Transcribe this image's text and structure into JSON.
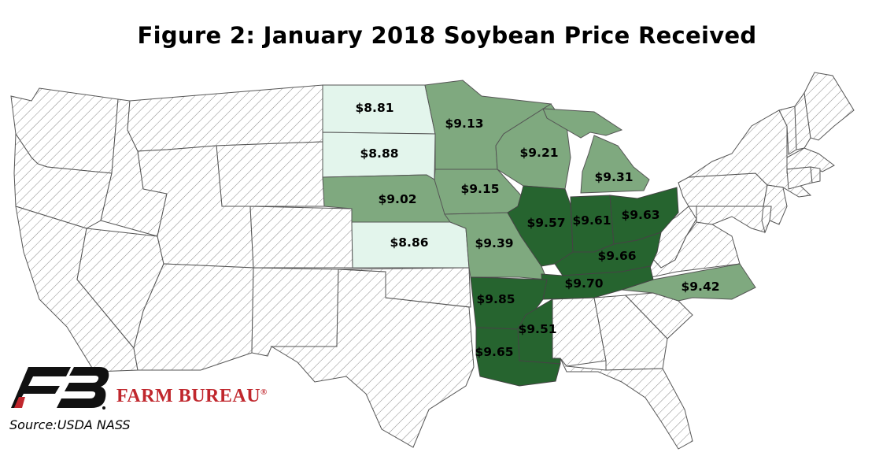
{
  "title": "Figure 2: January 2018 Soybean Price Received",
  "source": "Source:USDA NASS",
  "brand": {
    "name": "FARM BUREAU",
    "mark": "®"
  },
  "colors": {
    "light": "#e3f5ec",
    "medium": "#7fa97f",
    "dark": "#26642f",
    "no_data": "hatched",
    "brand_red": "#c0272d"
  },
  "states": [
    {
      "state": "ND",
      "price": "$8.81",
      "shade": "light"
    },
    {
      "state": "SD",
      "price": "$8.88",
      "shade": "light"
    },
    {
      "state": "KS",
      "price": "$8.86",
      "shade": "light"
    },
    {
      "state": "NE",
      "price": "$9.02",
      "shade": "medium"
    },
    {
      "state": "MN",
      "price": "$9.13",
      "shade": "medium"
    },
    {
      "state": "IA",
      "price": "$9.15",
      "shade": "medium"
    },
    {
      "state": "WI",
      "price": "$9.21",
      "shade": "medium"
    },
    {
      "state": "MI",
      "price": "$9.31",
      "shade": "medium"
    },
    {
      "state": "MO",
      "price": "$9.39",
      "shade": "medium"
    },
    {
      "state": "NC",
      "price": "$9.42",
      "shade": "medium"
    },
    {
      "state": "IL",
      "price": "$9.57",
      "shade": "dark"
    },
    {
      "state": "IN",
      "price": "$9.61",
      "shade": "dark"
    },
    {
      "state": "OH",
      "price": "$9.63",
      "shade": "dark"
    },
    {
      "state": "KY",
      "price": "$9.66",
      "shade": "dark"
    },
    {
      "state": "TN",
      "price": "$9.70",
      "shade": "dark"
    },
    {
      "state": "AR",
      "price": "$9.85",
      "shade": "dark"
    },
    {
      "state": "MS",
      "price": "$9.51",
      "shade": "dark"
    },
    {
      "state": "LA",
      "price": "$9.65",
      "shade": "dark"
    }
  ]
}
